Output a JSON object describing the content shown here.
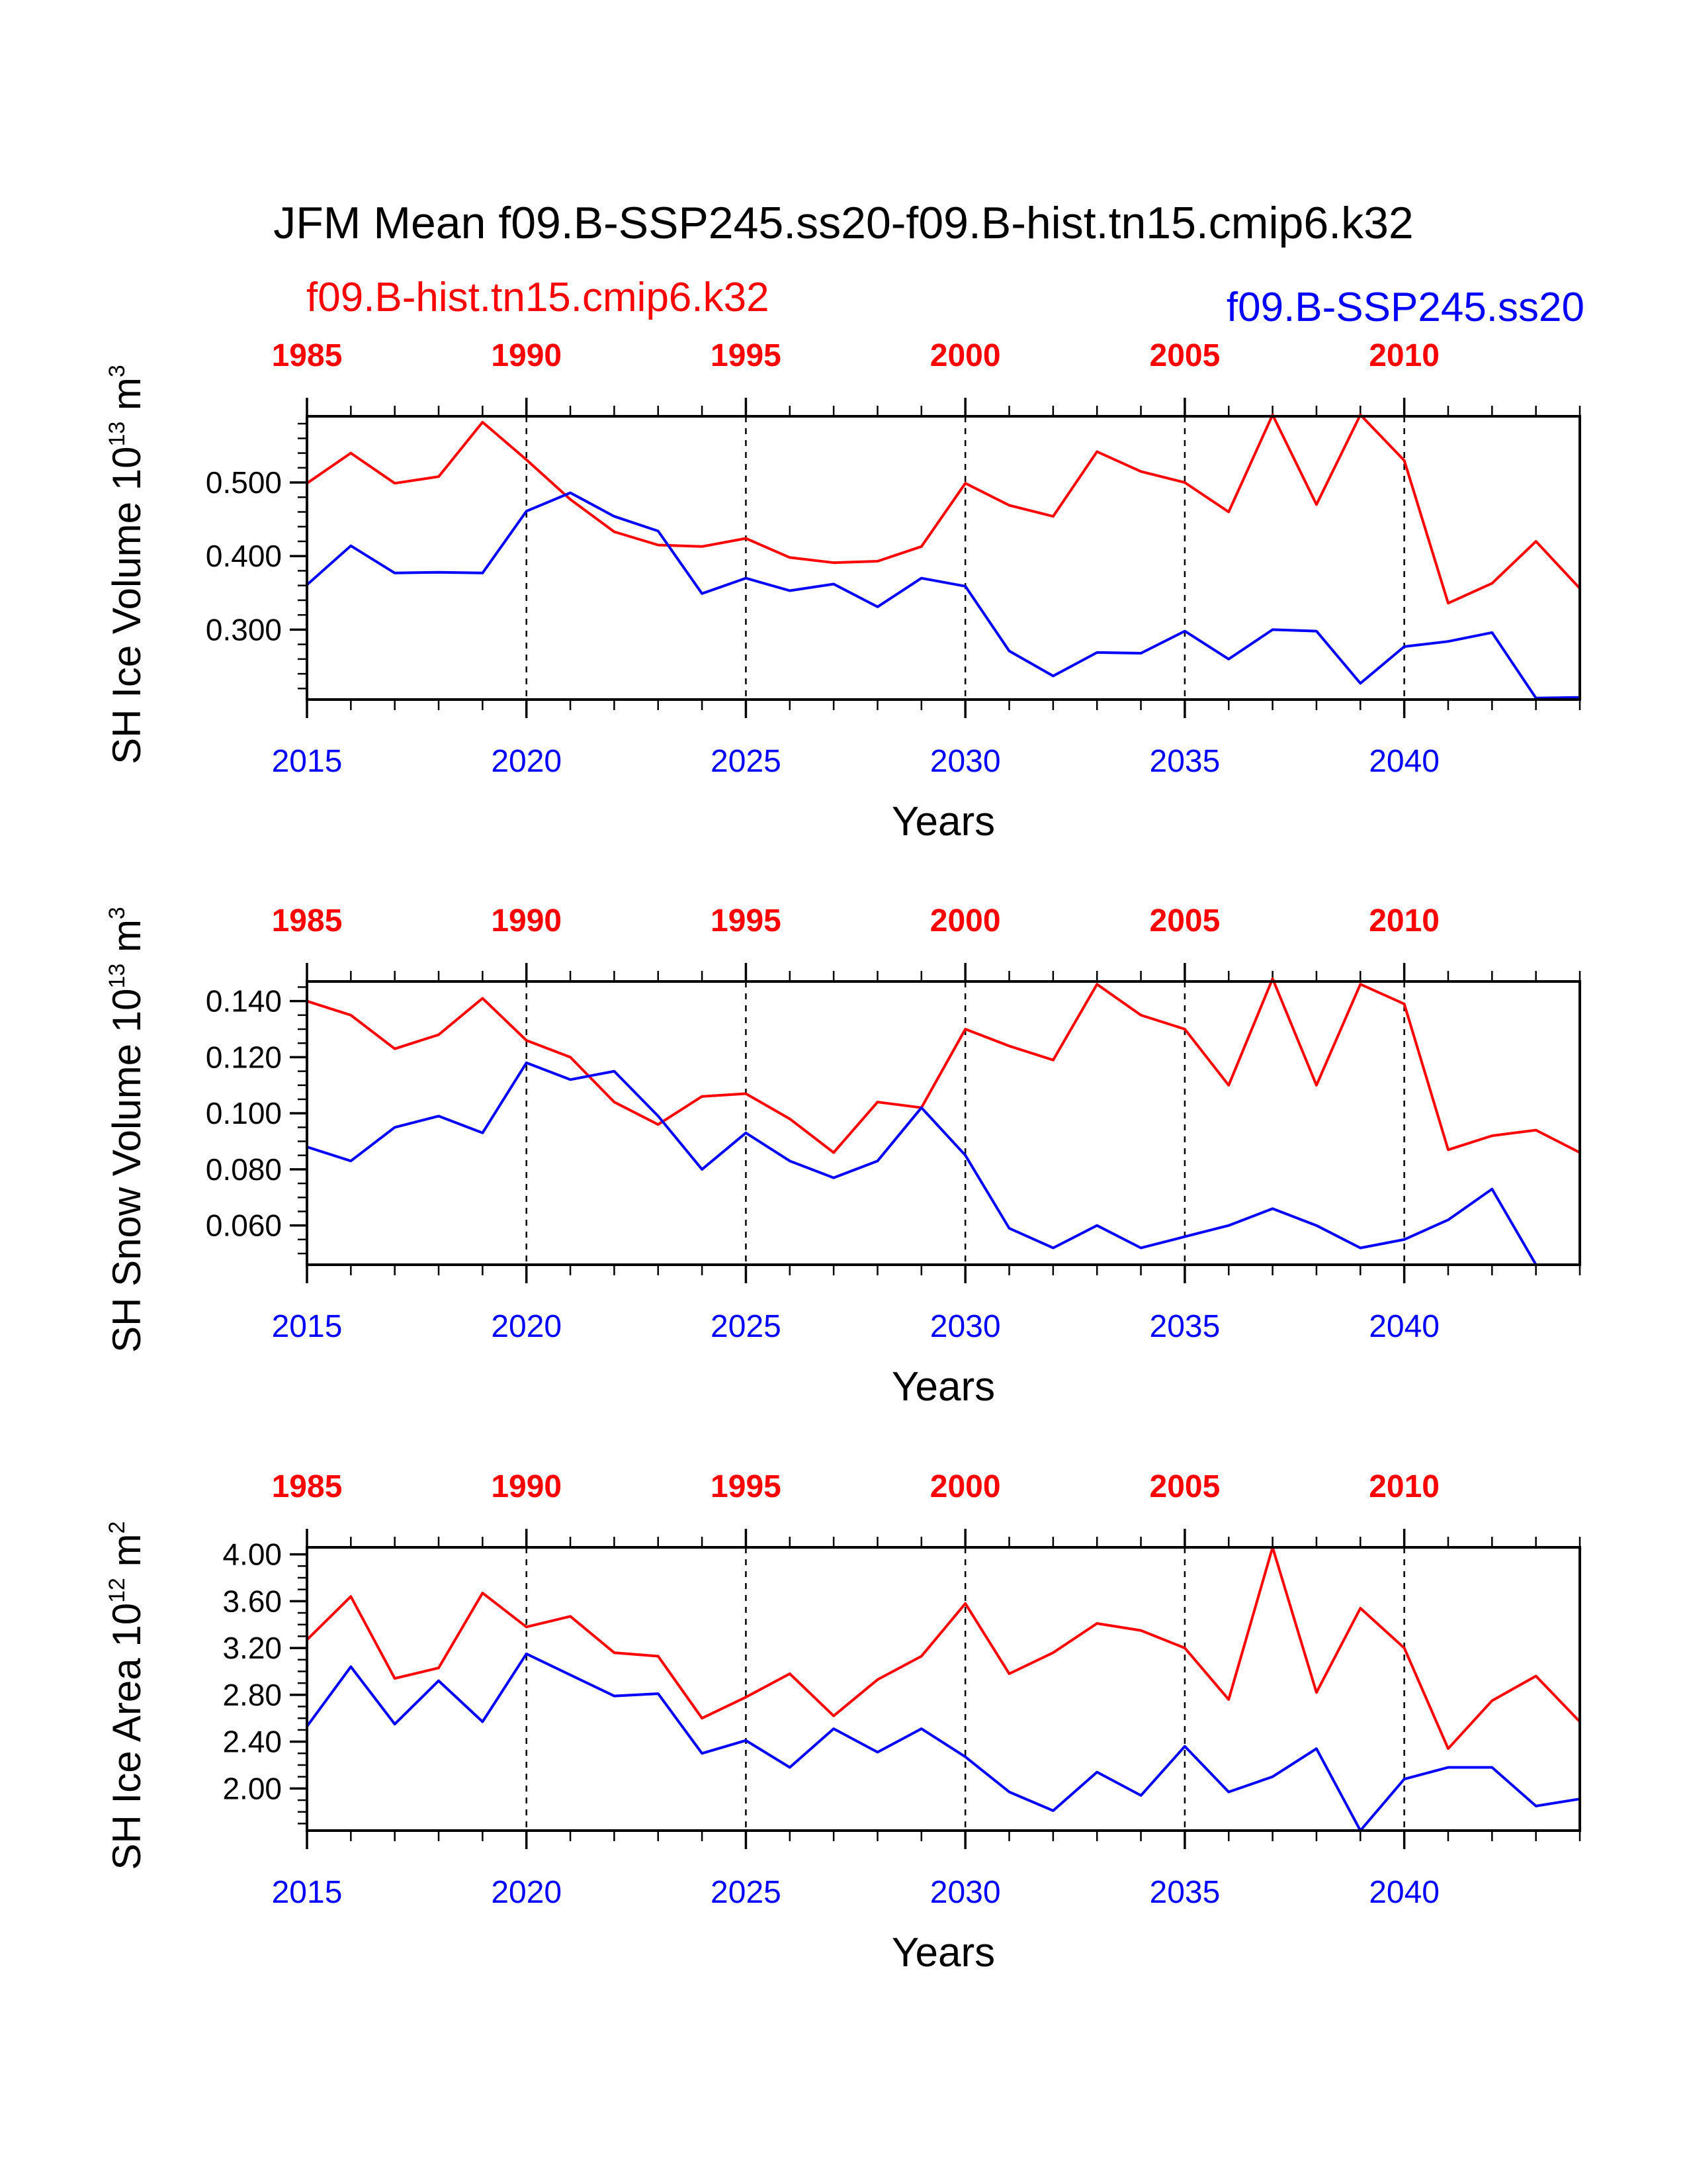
{
  "title": "JFM Mean f09.B-SSP245.ss20-f09.B-hist.tn15.cmip6.k32",
  "legend": {
    "hist": "f09.B-hist.tn15.cmip6.k32",
    "ssp": "f09.B-SSP245.ss20"
  },
  "colors": {
    "hist": "#ff0000",
    "ssp": "#0000ff"
  },
  "chart_data": [
    {
      "type": "line",
      "ylabel": "SH Ice Volume 10",
      "ylabel_exp": "13",
      "ylabel_unit": " m",
      "ylabel_unit_exp": "3",
      "xlabel": "Years",
      "ylim": [
        0.205,
        0.59
      ],
      "yticks": [
        0.3,
        0.4,
        0.5
      ],
      "ytick_labels": [
        "0.300",
        "0.400",
        "0.500"
      ],
      "yminor_step": 0.02,
      "series": [
        {
          "name": "f09.B-hist.tn15.cmip6.k32",
          "color": "#ff0000",
          "values": [
            0.499,
            0.54,
            0.499,
            0.508,
            0.582,
            0.531,
            0.477,
            0.433,
            0.415,
            0.413,
            0.424,
            0.398,
            0.391,
            0.393,
            0.413,
            0.499,
            0.469,
            0.454,
            0.542,
            0.515,
            0.5,
            0.46,
            0.592,
            0.47,
            0.592,
            0.53,
            0.336,
            0.363,
            0.42,
            0.356
          ]
        },
        {
          "name": "f09.B-SSP245.ss20",
          "color": "#0000ff",
          "values": [
            0.361,
            0.414,
            0.377,
            0.378,
            0.377,
            0.461,
            0.486,
            0.454,
            0.434,
            0.349,
            0.37,
            0.353,
            0.362,
            0.331,
            0.37,
            0.359,
            0.271,
            0.237,
            0.269,
            0.268,
            0.298,
            0.26,
            0.3,
            0.298,
            0.227,
            0.277,
            0.284,
            0.296,
            0.207,
            0.208
          ]
        }
      ]
    },
    {
      "type": "line",
      "ylabel": "SH Snow Volume 10",
      "ylabel_exp": "13",
      "ylabel_unit": " m",
      "ylabel_unit_exp": "3",
      "xlabel": "Years",
      "ylim": [
        0.046,
        0.147
      ],
      "yticks": [
        0.06,
        0.08,
        0.1,
        0.12,
        0.14
      ],
      "ytick_labels": [
        "0.060",
        "0.080",
        "0.100",
        "0.120",
        "0.140"
      ],
      "yminor_step": 0.005,
      "series": [
        {
          "name": "f09.B-hist.tn15.cmip6.k32",
          "color": "#ff0000",
          "values": [
            0.14,
            0.135,
            0.123,
            0.128,
            0.141,
            0.126,
            0.12,
            0.104,
            0.096,
            0.106,
            0.107,
            0.098,
            0.086,
            0.104,
            0.102,
            0.13,
            0.124,
            0.119,
            0.146,
            0.135,
            0.13,
            0.11,
            0.148,
            0.11,
            0.146,
            0.139,
            0.087,
            0.092,
            0.094,
            0.086
          ]
        },
        {
          "name": "f09.B-SSP245.ss20",
          "color": "#0000ff",
          "values": [
            0.088,
            0.083,
            0.095,
            0.099,
            0.093,
            0.118,
            0.112,
            0.115,
            0.099,
            0.08,
            0.093,
            0.083,
            0.077,
            0.083,
            0.102,
            0.085,
            0.059,
            0.052,
            0.06,
            0.052,
            0.056,
            0.06,
            0.066,
            0.06,
            0.052,
            0.055,
            0.062,
            0.073,
            0.046,
            0.046
          ]
        }
      ]
    },
    {
      "type": "line",
      "ylabel": "SH Ice Area 10",
      "ylabel_exp": "12",
      "ylabel_unit": " m",
      "ylabel_unit_exp": "2",
      "xlabel": "Years",
      "ylim": [
        1.64,
        4.06
      ],
      "yticks": [
        2.0,
        2.4,
        2.8,
        3.2,
        3.6,
        4.0
      ],
      "ytick_labels": [
        "2.00",
        "2.40",
        "2.80",
        "3.20",
        "3.60",
        "4.00"
      ],
      "yminor_step": 0.1,
      "series": [
        {
          "name": "f09.B-hist.tn15.cmip6.k32",
          "color": "#ff0000",
          "values": [
            3.27,
            3.64,
            2.94,
            3.03,
            3.67,
            3.38,
            3.47,
            3.16,
            3.13,
            2.6,
            2.78,
            2.98,
            2.62,
            2.93,
            3.13,
            3.58,
            2.98,
            3.16,
            3.41,
            3.35,
            3.2,
            2.76,
            4.06,
            2.82,
            3.54,
            3.2,
            2.34,
            2.75,
            2.96,
            2.57
          ]
        },
        {
          "name": "f09.B-SSP245.ss20",
          "color": "#0000ff",
          "values": [
            2.53,
            3.04,
            2.55,
            2.92,
            2.57,
            3.15,
            2.97,
            2.79,
            2.81,
            2.3,
            2.41,
            2.18,
            2.51,
            2.31,
            2.51,
            2.27,
            1.97,
            1.81,
            2.14,
            1.94,
            2.36,
            1.97,
            2.1,
            2.34,
            1.64,
            2.08,
            2.18,
            2.18,
            1.85,
            1.91
          ]
        }
      ]
    }
  ],
  "x_axis": {
    "bottom_years": [
      2015,
      2016,
      2017,
      2018,
      2019,
      2020,
      2021,
      2022,
      2023,
      2024,
      2025,
      2026,
      2027,
      2028,
      2029,
      2030,
      2031,
      2032,
      2033,
      2034,
      2035,
      2036,
      2037,
      2038,
      2039,
      2040,
      2041,
      2042,
      2043,
      2044
    ],
    "bottom_labels": [
      "2015",
      "2020",
      "2025",
      "2030",
      "2035",
      "2040"
    ],
    "top_labels": [
      "1985",
      "1990",
      "1995",
      "2000",
      "2005",
      "2010"
    ],
    "xlabel": "Years"
  }
}
